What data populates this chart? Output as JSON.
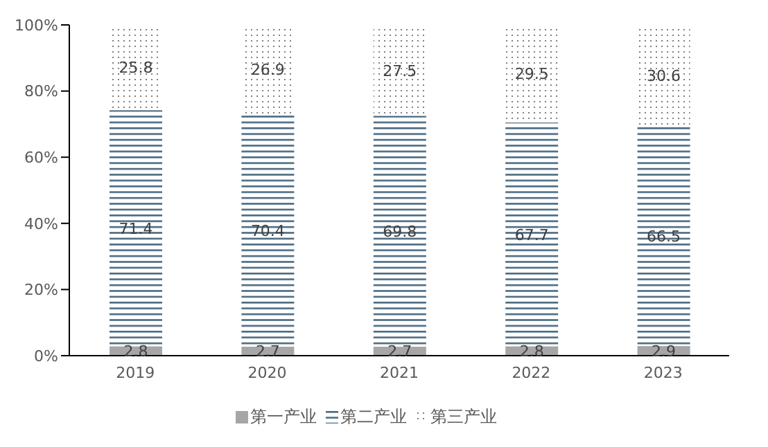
{
  "chart_data": {
    "type": "bar",
    "stacked": true,
    "categories": [
      "2019",
      "2020",
      "2021",
      "2022",
      "2023"
    ],
    "series": [
      {
        "name": "第一产业",
        "color": "#a6a6a6",
        "values": [
          2.8,
          2.7,
          2.7,
          2.8,
          2.9
        ]
      },
      {
        "name": "第二产业",
        "color": "#4a6a82",
        "values": [
          71.4,
          70.4,
          69.8,
          67.7,
          66.5
        ]
      },
      {
        "name": "第三产业",
        "color": "#7f7f7f",
        "values": [
          25.8,
          26.9,
          27.5,
          29.5,
          30.6
        ]
      }
    ],
    "ylim": [
      0,
      100
    ],
    "yticks": [
      {
        "value": 0,
        "label": "0%"
      },
      {
        "value": 20,
        "label": "20%"
      },
      {
        "value": 40,
        "label": "40%"
      },
      {
        "value": 60,
        "label": "60%"
      },
      {
        "value": 80,
        "label": "80%"
      },
      {
        "value": 100,
        "label": "100%"
      }
    ],
    "data_labels": true,
    "grid": false,
    "legend": "bottom"
  }
}
